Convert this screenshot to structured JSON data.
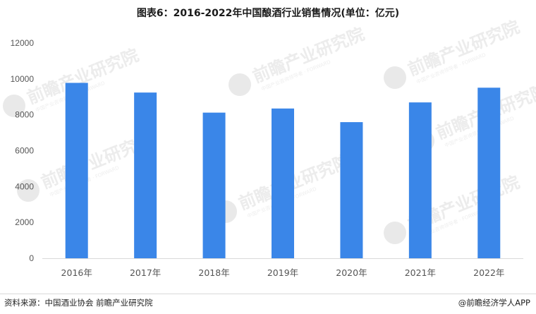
{
  "title": "图表6：2016-2022年中国酿酒行业销售情况(单位：亿元)",
  "source_label": "资料来源：",
  "source_text": "中国酒业协会 前瞻产业研究院",
  "brand": {
    "icon": "at-icon",
    "text": "@前瞻经济学人APP"
  },
  "watermark": {
    "main": "前瞻产业研究院",
    "sub": "中国产业咨询领导者 · FORWARD"
  },
  "colors": {
    "bar": "#3a86e8",
    "grid": "#d9d9d9",
    "tick_text": "#555555"
  },
  "chart_data": {
    "type": "bar",
    "title": "图表6：2016-2022年中国酿酒行业销售情况(单位：亿元)",
    "categories": [
      "2016年",
      "2017年",
      "2018年",
      "2019年",
      "2020年",
      "2021年",
      "2022年"
    ],
    "values": [
      9780,
      9240,
      8120,
      8350,
      7590,
      8690,
      9510
    ],
    "ylim": [
      0,
      12000
    ],
    "yticks": [
      0,
      2000,
      4000,
      6000,
      8000,
      10000,
      12000
    ],
    "xlabel": "",
    "ylabel": "",
    "grid": false,
    "legend": "none"
  }
}
